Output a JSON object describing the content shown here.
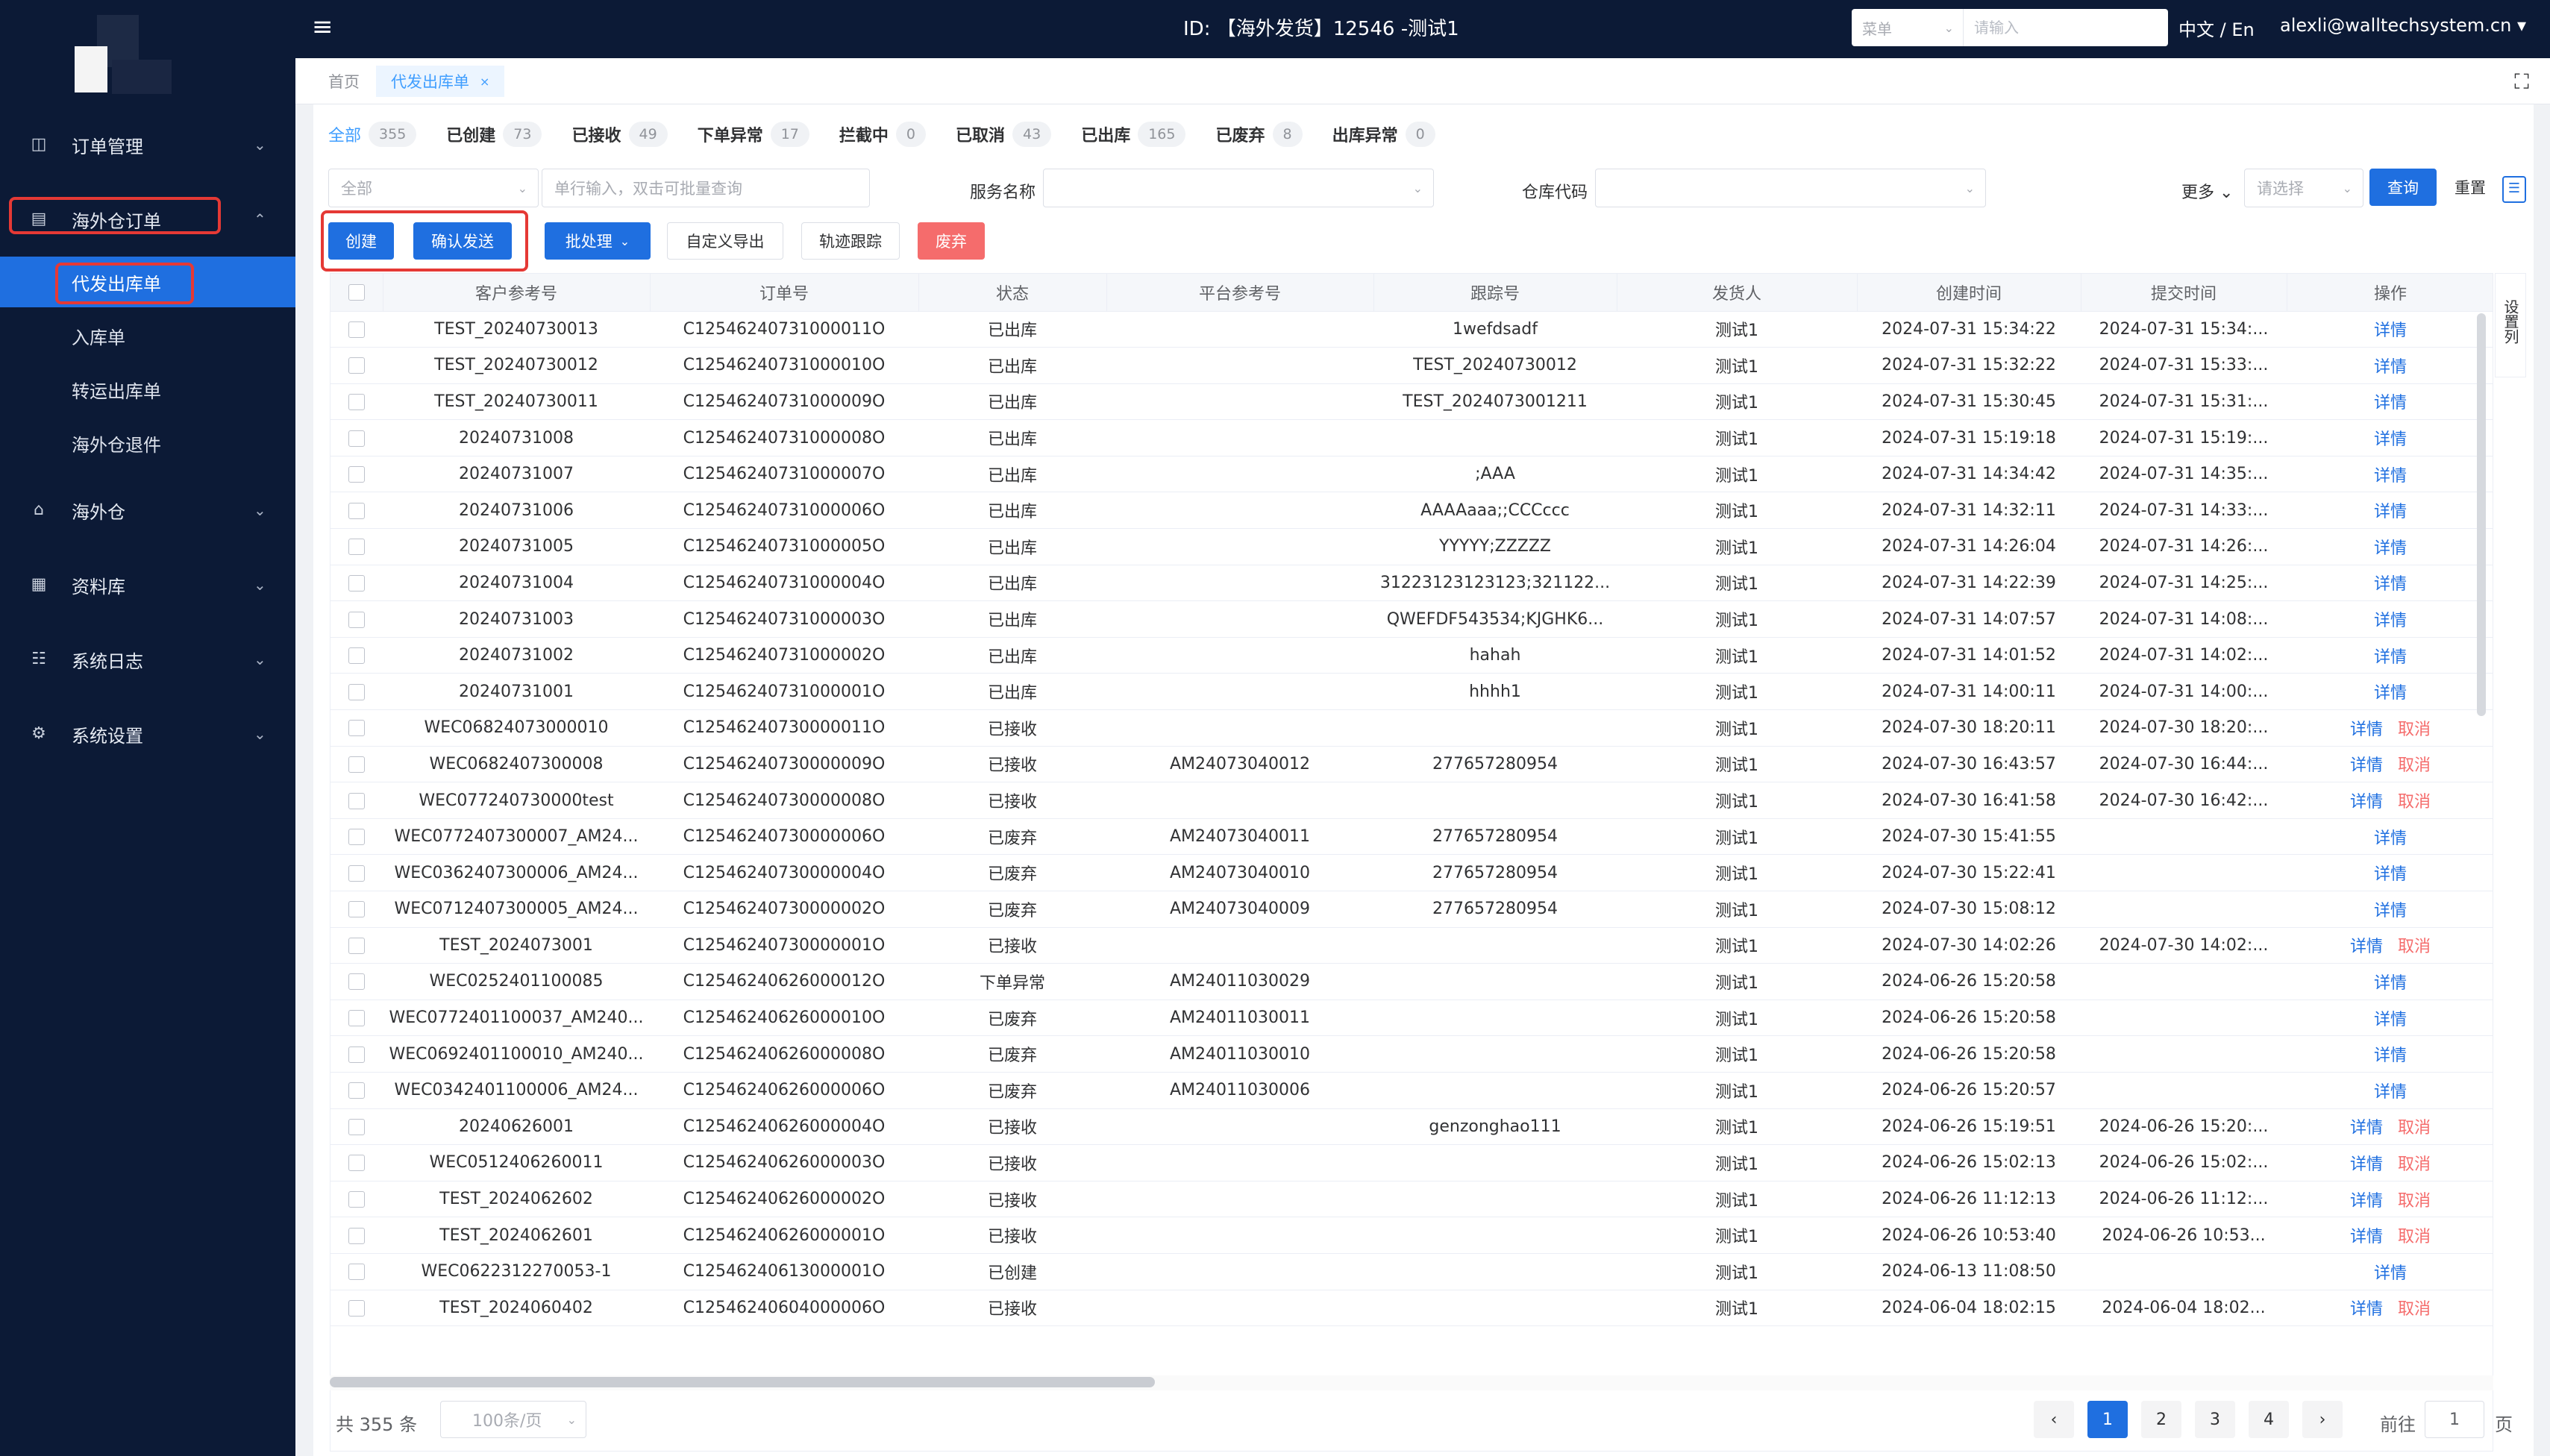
{
  "header": {
    "title": "ID: 【海外发货】12546 -测试1",
    "search_select": "菜单",
    "search_placeholder": "请输入",
    "lang": "中文 / En",
    "user": "alexli@walltechsystem.cn ▾"
  },
  "sidebar": {
    "items": [
      {
        "label": "订单管理",
        "icon": "clipboard-icon"
      },
      {
        "label": "海外仓订单",
        "icon": "document-icon"
      },
      {
        "label": "海外仓",
        "icon": "house-icon"
      },
      {
        "label": "资料库",
        "icon": "database-icon"
      },
      {
        "label": "系统日志",
        "icon": "log-icon"
      },
      {
        "label": "系统设置",
        "icon": "gear-icon"
      }
    ],
    "sub_items": [
      "代发出库单",
      "入库单",
      "转运出库单",
      "海外仓退件"
    ]
  },
  "page_tabs": {
    "home": "首页",
    "current": "代发出库单"
  },
  "status_tabs": [
    {
      "label": "全部",
      "count": "355"
    },
    {
      "label": "已创建",
      "count": "73"
    },
    {
      "label": "已接收",
      "count": "49"
    },
    {
      "label": "下单异常",
      "count": "17"
    },
    {
      "label": "拦截中",
      "count": "0"
    },
    {
      "label": "已取消",
      "count": "43"
    },
    {
      "label": "已出库",
      "count": "165"
    },
    {
      "label": "已废弃",
      "count": "8"
    },
    {
      "label": "出库异常",
      "count": "0"
    }
  ],
  "filters": {
    "scope_select": "全部",
    "keyword_placeholder": "单行输入，双击可批量查询",
    "service_label": "服务名称",
    "warehouse_label": "仓库代码",
    "more_label": "更多",
    "more_placeholder": "请选择",
    "search_button": "查询",
    "reset_button": "重置"
  },
  "toolbar": {
    "create": "创建",
    "confirm_send": "确认发送",
    "batch": "批处理",
    "export": "自定义导出",
    "tracking": "轨迹跟踪",
    "discard": "废弃"
  },
  "table": {
    "columns": [
      "客户参考号",
      "订单号",
      "状态",
      "平台参考号",
      "跟踪号",
      "发货人",
      "创建时间",
      "提交时间",
      "操作"
    ],
    "settings_label": "设置列",
    "detail_label": "详情",
    "cancel_label": "取消",
    "rows": [
      {
        "ref": "TEST_20240730013",
        "order": "C12546240731000011O",
        "status": "已出库",
        "platform": "",
        "tracking": "1wefdsadf",
        "shipper": "测试1",
        "created": "2024-07-31 15:34:22",
        "submitted": "2024-07-31 15:34:...",
        "cancel": false
      },
      {
        "ref": "TEST_20240730012",
        "order": "C12546240731000010O",
        "status": "已出库",
        "platform": "",
        "tracking": "TEST_20240730012",
        "shipper": "测试1",
        "created": "2024-07-31 15:32:22",
        "submitted": "2024-07-31 15:33:...",
        "cancel": false
      },
      {
        "ref": "TEST_20240730011",
        "order": "C12546240731000009O",
        "status": "已出库",
        "platform": "",
        "tracking": "TEST_2024073001211",
        "shipper": "测试1",
        "created": "2024-07-31 15:30:45",
        "submitted": "2024-07-31 15:31:...",
        "cancel": false
      },
      {
        "ref": "20240731008",
        "order": "C12546240731000008O",
        "status": "已出库",
        "platform": "",
        "tracking": "",
        "shipper": "测试1",
        "created": "2024-07-31 15:19:18",
        "submitted": "2024-07-31 15:19:...",
        "cancel": false
      },
      {
        "ref": "20240731007",
        "order": "C12546240731000007O",
        "status": "已出库",
        "platform": "",
        "tracking": ";AAA",
        "shipper": "测试1",
        "created": "2024-07-31 14:34:42",
        "submitted": "2024-07-31 14:35:...",
        "cancel": false
      },
      {
        "ref": "20240731006",
        "order": "C12546240731000006O",
        "status": "已出库",
        "platform": "",
        "tracking": "AAAAaaa;;CCCccc",
        "shipper": "测试1",
        "created": "2024-07-31 14:32:11",
        "submitted": "2024-07-31 14:33:...",
        "cancel": false
      },
      {
        "ref": "20240731005",
        "order": "C12546240731000005O",
        "status": "已出库",
        "platform": "",
        "tracking": "YYYYY;ZZZZZ",
        "shipper": "测试1",
        "created": "2024-07-31 14:26:04",
        "submitted": "2024-07-31 14:26:...",
        "cancel": false
      },
      {
        "ref": "20240731004",
        "order": "C12546240731000004O",
        "status": "已出库",
        "platform": "",
        "tracking": "31223123123123;321122...",
        "shipper": "测试1",
        "created": "2024-07-31 14:22:39",
        "submitted": "2024-07-31 14:25:...",
        "cancel": false
      },
      {
        "ref": "20240731003",
        "order": "C12546240731000003O",
        "status": "已出库",
        "platform": "",
        "tracking": "QWEFDF543534;KJGHK6...",
        "shipper": "测试1",
        "created": "2024-07-31 14:07:57",
        "submitted": "2024-07-31 14:08:...",
        "cancel": false
      },
      {
        "ref": "20240731002",
        "order": "C12546240731000002O",
        "status": "已出库",
        "platform": "",
        "tracking": "hahah",
        "shipper": "测试1",
        "created": "2024-07-31 14:01:52",
        "submitted": "2024-07-31 14:02:...",
        "cancel": false
      },
      {
        "ref": "20240731001",
        "order": "C12546240731000001O",
        "status": "已出库",
        "platform": "",
        "tracking": "hhhh1",
        "shipper": "测试1",
        "created": "2024-07-31 14:00:11",
        "submitted": "2024-07-31 14:00:...",
        "cancel": false
      },
      {
        "ref": "WEC06824073000010",
        "order": "C12546240730000011O",
        "status": "已接收",
        "platform": "",
        "tracking": "",
        "shipper": "测试1",
        "created": "2024-07-30 18:20:11",
        "submitted": "2024-07-30 18:20:...",
        "cancel": true
      },
      {
        "ref": "WEC0682407300008",
        "order": "C12546240730000009O",
        "status": "已接收",
        "platform": "AM24073040012",
        "tracking": "277657280954",
        "shipper": "测试1",
        "created": "2024-07-30 16:43:57",
        "submitted": "2024-07-30 16:44:...",
        "cancel": true
      },
      {
        "ref": "WEC077240730000test",
        "order": "C12546240730000008O",
        "status": "已接收",
        "platform": "",
        "tracking": "",
        "shipper": "测试1",
        "created": "2024-07-30 16:41:58",
        "submitted": "2024-07-30 16:42:...",
        "cancel": true
      },
      {
        "ref": "WEC0772407300007_AM24...",
        "order": "C12546240730000006O",
        "status": "已废弃",
        "platform": "AM24073040011",
        "tracking": "277657280954",
        "shipper": "测试1",
        "created": "2024-07-30 15:41:55",
        "submitted": "",
        "cancel": false
      },
      {
        "ref": "WEC0362407300006_AM24...",
        "order": "C12546240730000004O",
        "status": "已废弃",
        "platform": "AM24073040010",
        "tracking": "277657280954",
        "shipper": "测试1",
        "created": "2024-07-30 15:22:41",
        "submitted": "",
        "cancel": false
      },
      {
        "ref": "WEC0712407300005_AM24...",
        "order": "C12546240730000002O",
        "status": "已废弃",
        "platform": "AM24073040009",
        "tracking": "277657280954",
        "shipper": "测试1",
        "created": "2024-07-30 15:08:12",
        "submitted": "",
        "cancel": false
      },
      {
        "ref": "TEST_2024073001",
        "order": "C12546240730000001O",
        "status": "已接收",
        "platform": "",
        "tracking": "",
        "shipper": "测试1",
        "created": "2024-07-30 14:02:26",
        "submitted": "2024-07-30 14:02:...",
        "cancel": true
      },
      {
        "ref": "WEC0252401100085",
        "order": "C12546240626000012O",
        "status": "下单异常",
        "platform": "AM24011030029",
        "tracking": "",
        "shipper": "测试1",
        "created": "2024-06-26 15:20:58",
        "submitted": "",
        "cancel": false
      },
      {
        "ref": "WEC0772401100037_AM240...",
        "order": "C12546240626000010O",
        "status": "已废弃",
        "platform": "AM24011030011",
        "tracking": "",
        "shipper": "测试1",
        "created": "2024-06-26 15:20:58",
        "submitted": "",
        "cancel": false
      },
      {
        "ref": "WEC0692401100010_AM240...",
        "order": "C12546240626000008O",
        "status": "已废弃",
        "platform": "AM24011030010",
        "tracking": "",
        "shipper": "测试1",
        "created": "2024-06-26 15:20:58",
        "submitted": "",
        "cancel": false
      },
      {
        "ref": "WEC0342401100006_AM24...",
        "order": "C12546240626000006O",
        "status": "已废弃",
        "platform": "AM24011030006",
        "tracking": "",
        "shipper": "测试1",
        "created": "2024-06-26 15:20:57",
        "submitted": "",
        "cancel": false
      },
      {
        "ref": "20240626001",
        "order": "C12546240626000004O",
        "status": "已接收",
        "platform": "",
        "tracking": "genzonghao111",
        "shipper": "测试1",
        "created": "2024-06-26 15:19:51",
        "submitted": "2024-06-26 15:20:...",
        "cancel": true
      },
      {
        "ref": "WEC0512406260011",
        "order": "C12546240626000003O",
        "status": "已接收",
        "platform": "",
        "tracking": "",
        "shipper": "测试1",
        "created": "2024-06-26 15:02:13",
        "submitted": "2024-06-26 15:02:...",
        "cancel": true
      },
      {
        "ref": "TEST_2024062602",
        "order": "C12546240626000002O",
        "status": "已接收",
        "platform": "",
        "tracking": "",
        "shipper": "测试1",
        "created": "2024-06-26 11:12:13",
        "submitted": "2024-06-26 11:12:...",
        "cancel": true
      },
      {
        "ref": "TEST_2024062601",
        "order": "C12546240626000001O",
        "status": "已接收",
        "platform": "",
        "tracking": "",
        "shipper": "测试1",
        "created": "2024-06-26 10:53:40",
        "submitted": "2024-06-26 10:53...",
        "cancel": true
      },
      {
        "ref": "WEC0622312270053-1",
        "order": "C12546240613000001O",
        "status": "已创建",
        "platform": "",
        "tracking": "",
        "shipper": "测试1",
        "created": "2024-06-13 11:08:50",
        "submitted": "",
        "cancel": false
      },
      {
        "ref": "TEST_2024060402",
        "order": "C12546240604000006O",
        "status": "已接收",
        "platform": "",
        "tracking": "",
        "shipper": "测试1",
        "created": "2024-06-04 18:02:15",
        "submitted": "2024-06-04 18:02...",
        "cancel": true
      }
    ]
  },
  "pagination": {
    "total": "共 355 条",
    "page_size": "100条/页",
    "prev": "‹",
    "next": "›",
    "pages": [
      "1",
      "2",
      "3",
      "4"
    ],
    "goto_label": "前往",
    "goto_value": "1",
    "goto_suffix": "页"
  },
  "colors": {
    "sidebar_bg": "#0c1a36",
    "primary": "#1f6fe0",
    "danger": "#f56c6c",
    "highlight": "#e53935"
  }
}
